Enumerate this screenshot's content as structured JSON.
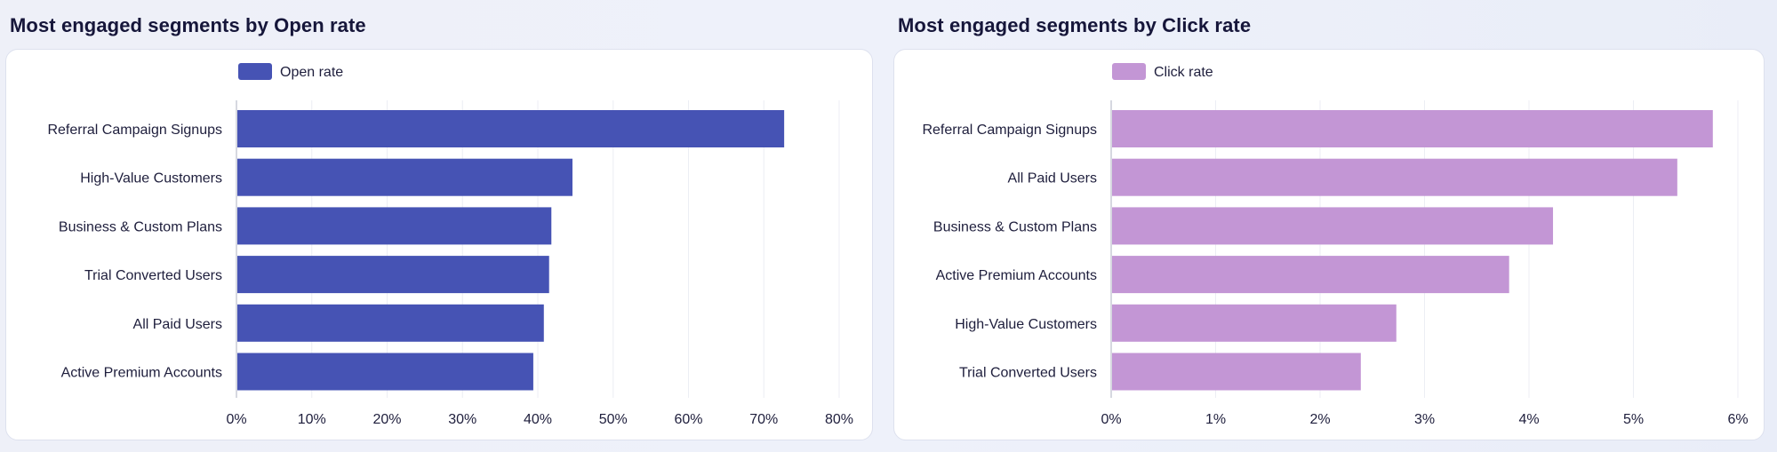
{
  "chart_data": [
    {
      "type": "bar",
      "orientation": "horizontal",
      "title": "Most engaged segments by Open rate",
      "categories": [
        "Referral Campaign Signups",
        "High-Value Customers",
        "Business & Custom Plans",
        "Trial Converted Users",
        "All Paid Users",
        "Active Premium Accounts"
      ],
      "series": [
        {
          "name": "Open rate",
          "values": [
            72.7,
            44.6,
            41.8,
            41.5,
            40.8,
            39.4
          ],
          "color": "#4653b4"
        }
      ],
      "xlim": [
        0,
        80
      ],
      "ticks": [
        0,
        10,
        20,
        30,
        40,
        50,
        60,
        70,
        80
      ],
      "tick_labels": [
        "0%",
        "10%",
        "20%",
        "30%",
        "40%",
        "50%",
        "60%",
        "70%",
        "80%"
      ],
      "grid": true,
      "legend_position": "top-left"
    },
    {
      "type": "bar",
      "orientation": "horizontal",
      "title": "Most engaged segments by Click rate",
      "categories": [
        "Referral Campaign Signups",
        "All Paid Users",
        "Business & Custom Plans",
        "Active Premium Accounts",
        "High-Value Customers",
        "Trial Converted Users"
      ],
      "series": [
        {
          "name": "Click rate",
          "values": [
            5.76,
            5.42,
            4.23,
            3.81,
            2.73,
            2.39
          ],
          "color": "#c396d5"
        }
      ],
      "xlim": [
        0,
        6
      ],
      "ticks": [
        0,
        1,
        2,
        3,
        4,
        5,
        6
      ],
      "tick_labels": [
        "0%",
        "1%",
        "2%",
        "3%",
        "4%",
        "5%",
        "6%"
      ],
      "grid": true,
      "legend_position": "top-left"
    }
  ]
}
